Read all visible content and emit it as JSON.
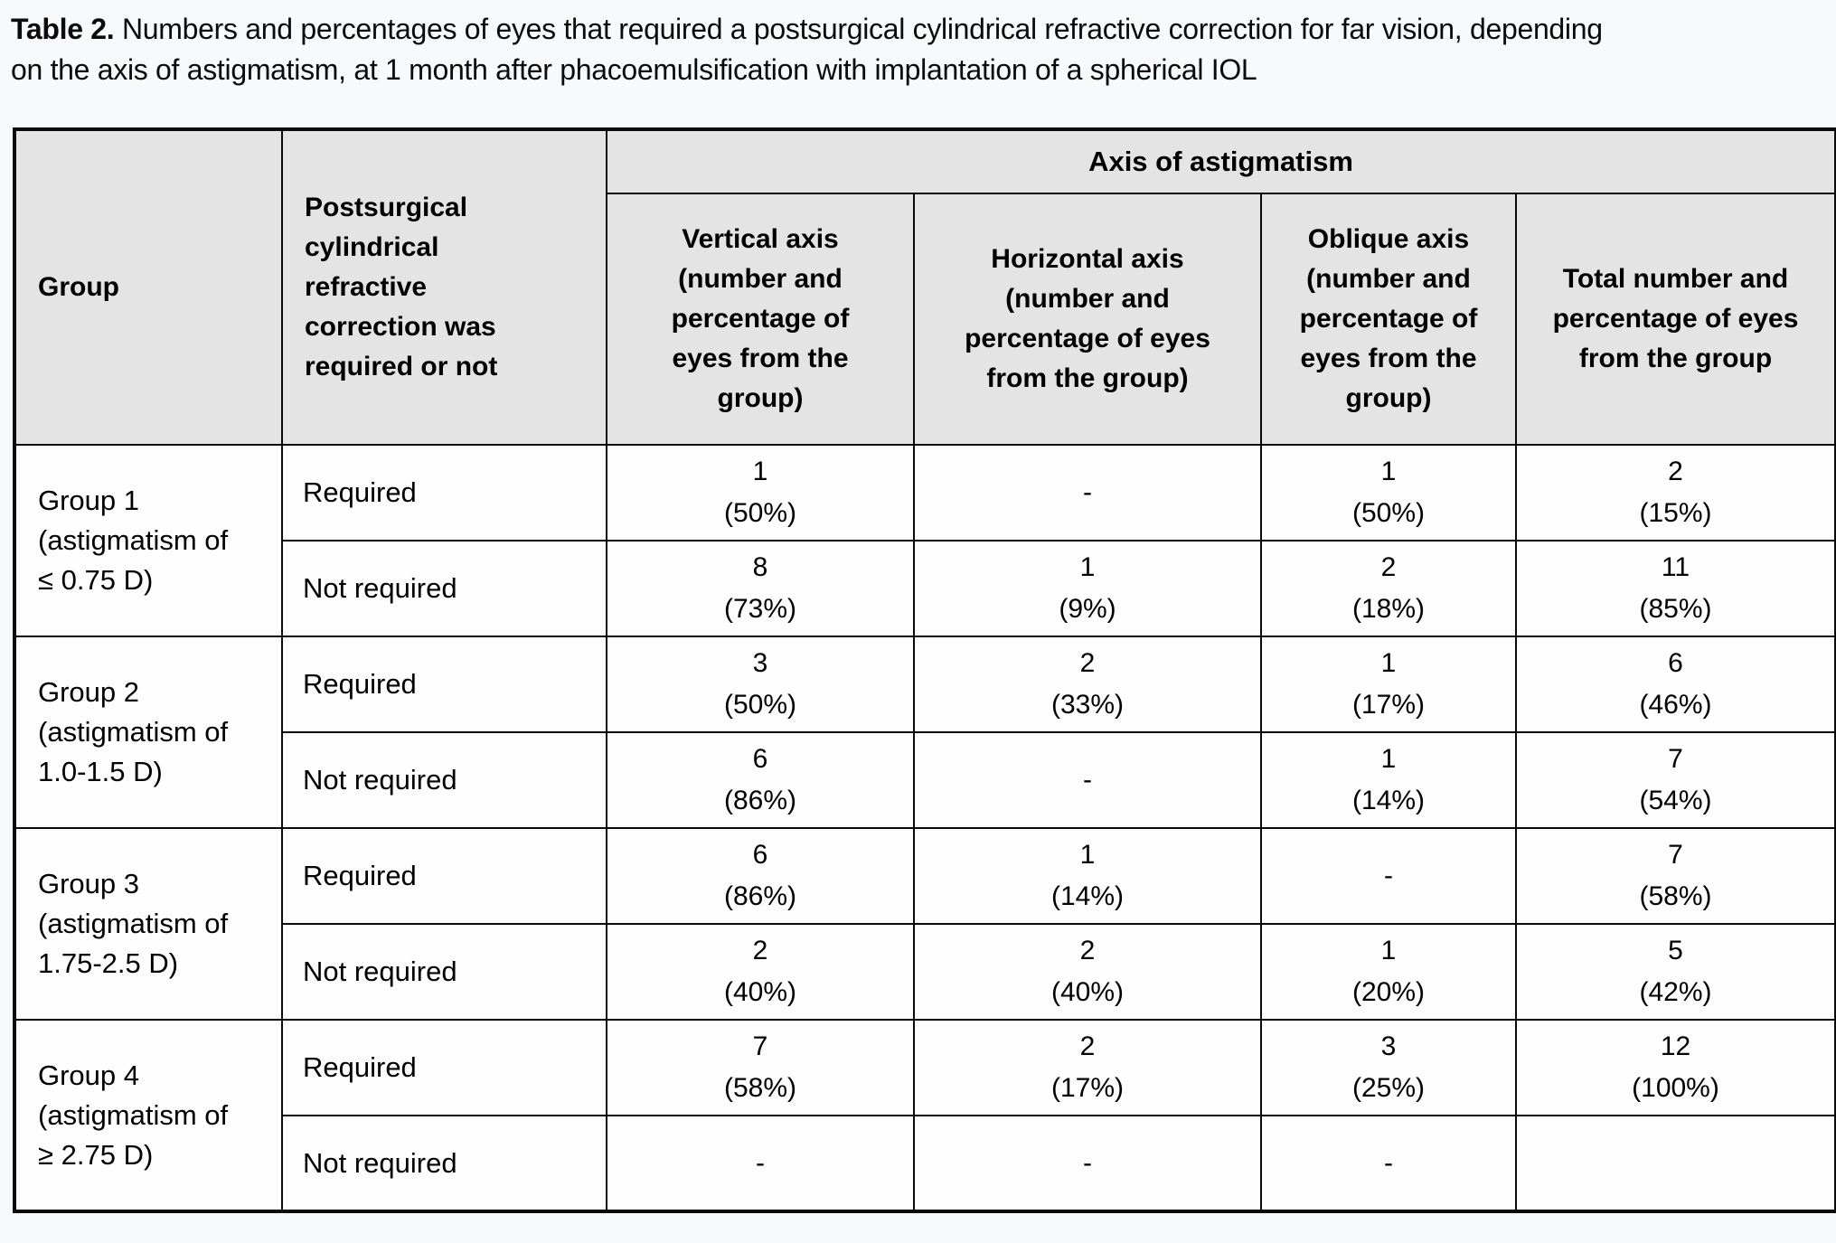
{
  "title": {
    "bold": "Table 2.",
    "line1_rest": "Numbers and percentages of eyes that required a postsurgical cylindrical refractive correction for far vision, depending",
    "line2": "on the axis of astigmatism, at 1 month after phacoemulsification with implantation of a spherical IOL"
  },
  "table": {
    "colors": {
      "header_bg": "#e4e4e4",
      "border": "#0a0a0a",
      "cell_bg": "#fdfdfe",
      "page_bg": "#f8f9fb"
    },
    "headers": {
      "group": "Group",
      "postsurgical": "Postsurgical\ncylindrical\nrefractive\ncorrection was\nrequired or not",
      "axis_banner": "Axis of astigmatism",
      "vertical": "Vertical axis\n(number and\npercentage of\neyes from the\ngroup)",
      "horizontal": "Horizontal axis\n(number and\npercentage of eyes\nfrom the group)",
      "oblique": "Oblique axis\n(number and\npercentage of\neyes from the\ngroup)",
      "total": "Total number and\npercentage of eyes\nfrom the group"
    },
    "groups": [
      {
        "label": "Group 1\n(astigmatism of\n≤ 0.75 D)",
        "rows": [
          {
            "requirement": "Required",
            "vertical": "1\n(50%)",
            "horizontal": "-",
            "oblique": "1\n(50%)",
            "total": "2\n(15%)"
          },
          {
            "requirement": "Not required",
            "vertical": "8\n(73%)",
            "horizontal": "1\n(9%)",
            "oblique": "2\n(18%)",
            "total": "11\n(85%)"
          }
        ]
      },
      {
        "label": "Group 2\n(astigmatism of\n1.0-1.5 D)",
        "rows": [
          {
            "requirement": "Required",
            "vertical": "3\n(50%)",
            "horizontal": "2\n(33%)",
            "oblique": "1\n(17%)",
            "total": "6\n(46%)"
          },
          {
            "requirement": "Not required",
            "vertical": "6\n(86%)",
            "horizontal": "-",
            "oblique": "1\n(14%)",
            "total": "7\n(54%)"
          }
        ]
      },
      {
        "label": "Group 3\n(astigmatism of\n1.75-2.5 D)",
        "rows": [
          {
            "requirement": "Required",
            "vertical": "6\n(86%)",
            "horizontal": "1\n(14%)",
            "oblique": "-",
            "total": "7\n(58%)"
          },
          {
            "requirement": "Not required",
            "vertical": "2\n(40%)",
            "horizontal": "2\n(40%)",
            "oblique": "1\n(20%)",
            "total": "5\n(42%)"
          }
        ]
      },
      {
        "label": "Group 4\n(astigmatism of\n≥ 2.75 D)",
        "rows": [
          {
            "requirement": "Required",
            "vertical": "7\n(58%)",
            "horizontal": "2\n(17%)",
            "oblique": "3\n(25%)",
            "total": "12\n(100%)"
          },
          {
            "requirement": "Not required",
            "vertical": "-",
            "horizontal": "-",
            "oblique": "-",
            "total": ""
          }
        ]
      }
    ]
  }
}
